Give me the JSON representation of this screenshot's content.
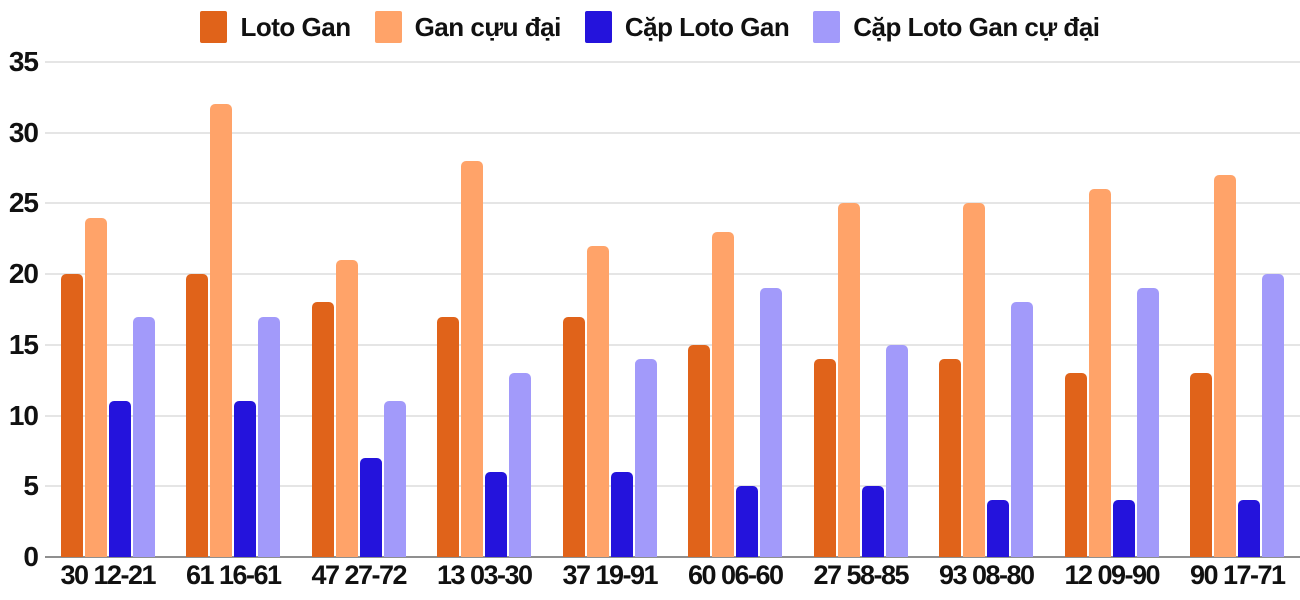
{
  "chart_data": {
    "type": "bar",
    "categories": [
      "30 12-21",
      "61 16-61",
      "47 27-72",
      "13 03-30",
      "37 19-91",
      "60 06-60",
      "27 58-85",
      "93 08-80",
      "12 09-90",
      "90 17-71"
    ],
    "series": [
      {
        "name": "Loto Gan",
        "color": "#e0631a",
        "values": [
          20,
          20,
          18,
          17,
          17,
          15,
          14,
          14,
          13,
          13
        ]
      },
      {
        "name": "Gan cựu đại",
        "color": "#ffa369",
        "values": [
          24,
          32,
          21,
          28,
          22,
          23,
          25,
          25,
          26,
          27
        ]
      },
      {
        "name": "Cặp Loto Gan",
        "color": "#2413dc",
        "values": [
          11,
          11,
          7,
          6,
          6,
          5,
          5,
          4,
          4,
          4
        ]
      },
      {
        "name": "Cặp Loto Gan cự đại",
        "color": "#a29afa",
        "values": [
          17,
          17,
          11,
          13,
          14,
          19,
          15,
          18,
          19,
          20
        ]
      }
    ],
    "yticks": [
      0,
      5,
      10,
      15,
      20,
      25,
      30,
      35
    ],
    "ylim": [
      0,
      35
    ],
    "grid": true,
    "legend_position": "top",
    "title": "",
    "xlabel": "",
    "ylabel": ""
  },
  "colors": {
    "background": "#ffffff",
    "gridline": "#e5e5e5",
    "baseline": "#8f8f8f",
    "text": "#111111"
  }
}
